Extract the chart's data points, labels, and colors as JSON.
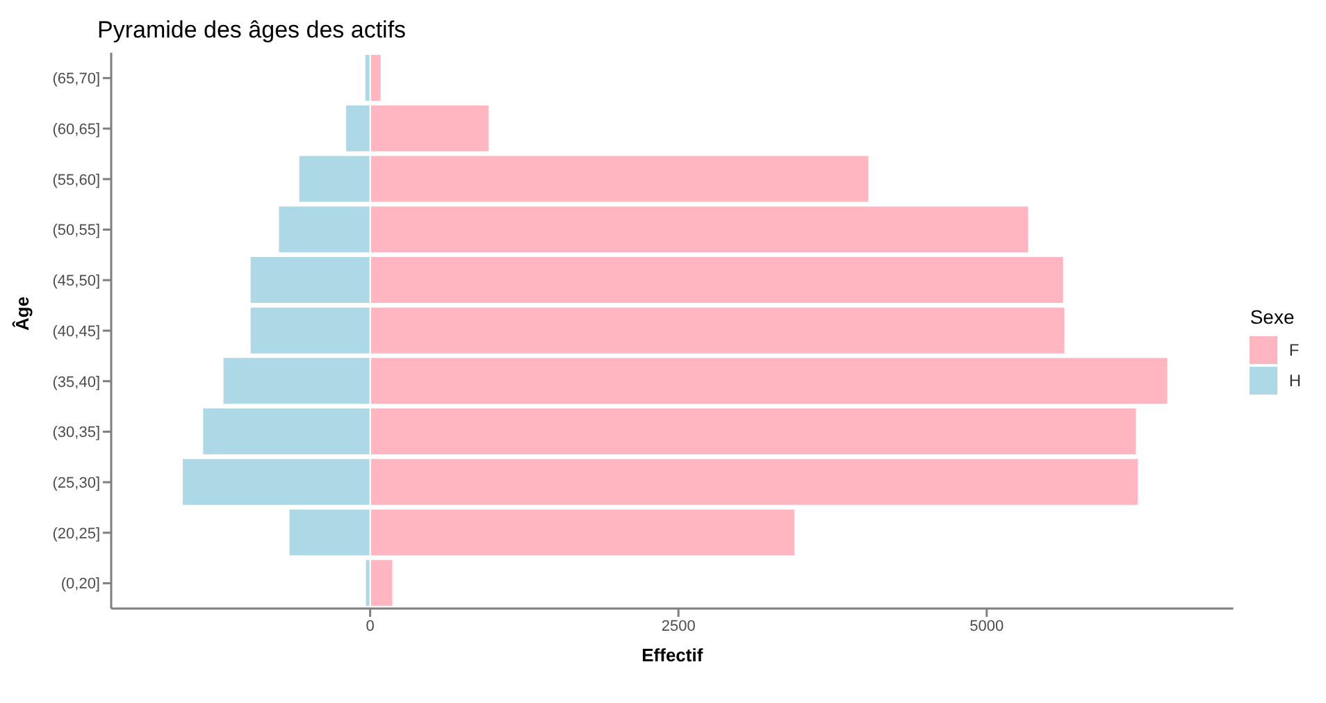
{
  "chart_data": {
    "type": "bar",
    "orientation": "horizontal",
    "stacked": true,
    "title": "Pyramide des âges des actifs",
    "xlabel": "Effectif",
    "ylabel": "Âge",
    "legend_title": "Sexe",
    "legend": "right",
    "grid": false,
    "categories": [
      "(65,70]",
      "(60,65]",
      "(55,60]",
      "(50,55]",
      "(45,50]",
      "(40,45]",
      "(35,40]",
      "(30,35]",
      "(25,30]",
      "(20,25]",
      "(0,20]"
    ],
    "series": [
      {
        "name": "F",
        "color": "#ffb6c1",
        "values": [
          90,
          965,
          4045,
          5340,
          5625,
          5635,
          6470,
          6215,
          6230,
          3445,
          185
        ]
      },
      {
        "name": "H",
        "color": "#add8e6",
        "values": [
          -45,
          -200,
          -580,
          -745,
          -975,
          -975,
          -1195,
          -1360,
          -1525,
          -660,
          -40
        ]
      }
    ],
    "xlim": [
      -2100,
      7000
    ],
    "xticks": [
      0,
      2500,
      5000
    ]
  }
}
